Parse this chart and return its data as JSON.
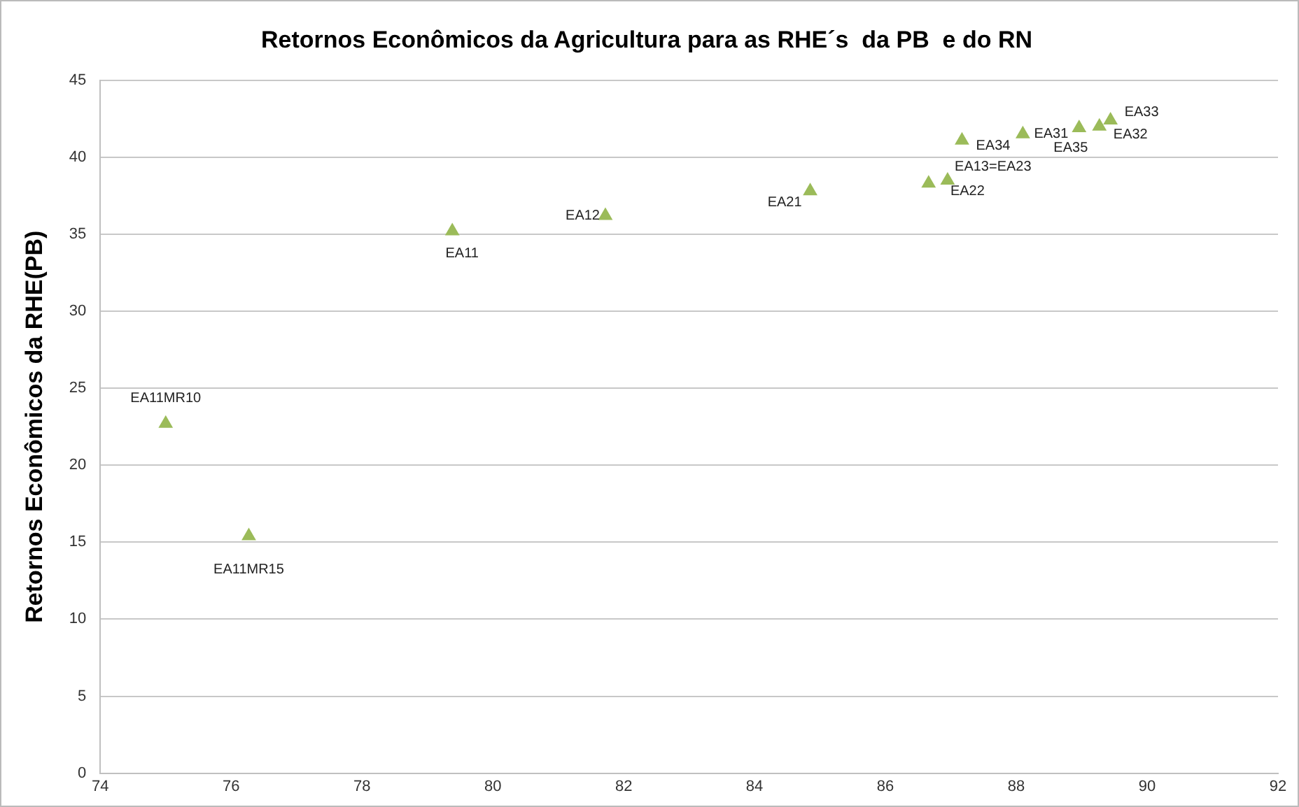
{
  "chart_data": {
    "type": "scatter",
    "title": "Retornos Econômicos da Agricultura para as RHE´s  da PB  e do RN",
    "ylabel": "Retornos Econômicos da RHE(PB)",
    "x": [
      75.0,
      76.27,
      79.38,
      81.72,
      84.85,
      86.66,
      86.95,
      87.17,
      88.1,
      88.96,
      89.27,
      89.44
    ],
    "series": [
      {
        "color": "#9bbb59",
        "values": [
          22.7,
          15.4,
          35.2,
          36.2,
          37.8,
          38.3,
          38.5,
          41.1,
          41.5,
          41.9,
          42.0,
          42.4
        ]
      }
    ],
    "xlim": [
      74,
      92
    ],
    "xticks": [
      74,
      76,
      78,
      80,
      82,
      84,
      86,
      88,
      90,
      92
    ],
    "ylim": [
      0,
      45
    ],
    "yticks": [
      0,
      5,
      10,
      15,
      20,
      25,
      30,
      35,
      40,
      45
    ],
    "grid": "y",
    "legend": false,
    "marker": "triangle",
    "annotations": [
      {
        "text": "EA11MR10",
        "x": 75.0,
        "y": 22.7
      },
      {
        "text": "EA11MR15",
        "x": 76.27,
        "y": 15.4
      },
      {
        "text": "EA11",
        "x": 79.38,
        "y": 35.2
      },
      {
        "text": "EA12",
        "x": 81.72,
        "y": 36.2
      },
      {
        "text": "EA21",
        "x": 84.85,
        "y": 37.8
      },
      {
        "text": "EA13=EA23",
        "x": 86.66,
        "y": 38.3
      },
      {
        "text": "EA22",
        "x": 86.95,
        "y": 38.5
      },
      {
        "text": "EA34",
        "x": 87.17,
        "y": 41.1
      },
      {
        "text": "EA31",
        "x": 88.1,
        "y": 41.5
      },
      {
        "text": "EA35",
        "x": 88.96,
        "y": 41.9
      },
      {
        "text": "EA32",
        "x": 89.27,
        "y": 42.0
      },
      {
        "text": "EA33",
        "x": 89.44,
        "y": 42.4
      }
    ]
  }
}
